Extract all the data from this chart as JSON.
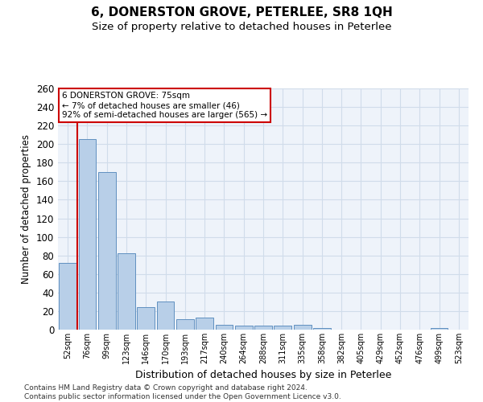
{
  "title": "6, DONERSTON GROVE, PETERLEE, SR8 1QH",
  "subtitle": "Size of property relative to detached houses in Peterlee",
  "xlabel": "Distribution of detached houses by size in Peterlee",
  "ylabel": "Number of detached properties",
  "categories": [
    "52sqm",
    "76sqm",
    "99sqm",
    "123sqm",
    "146sqm",
    "170sqm",
    "193sqm",
    "217sqm",
    "240sqm",
    "264sqm",
    "288sqm",
    "311sqm",
    "335sqm",
    "358sqm",
    "382sqm",
    "405sqm",
    "429sqm",
    "452sqm",
    "476sqm",
    "499sqm",
    "523sqm"
  ],
  "values": [
    72,
    205,
    170,
    82,
    24,
    30,
    11,
    13,
    5,
    4,
    4,
    4,
    5,
    2,
    0,
    0,
    0,
    0,
    0,
    2,
    0
  ],
  "bar_color": "#b8cfe8",
  "bar_edge_color": "#6090c0",
  "grid_color": "#d0dcea",
  "vline_x": 0.5,
  "vline_color": "#cc0000",
  "annotation_line1": "6 DONERSTON GROVE: 75sqm",
  "annotation_line2": "← 7% of detached houses are smaller (46)",
  "annotation_line3": "92% of semi-detached houses are larger (565) →",
  "annotation_box_color": "#ffffff",
  "annotation_box_edge": "#cc0000",
  "ylim": [
    0,
    260
  ],
  "yticks": [
    0,
    20,
    40,
    60,
    80,
    100,
    120,
    140,
    160,
    180,
    200,
    220,
    240,
    260
  ],
  "footnote": "Contains HM Land Registry data © Crown copyright and database right 2024.\nContains public sector information licensed under the Open Government Licence v3.0.",
  "bg_color": "#eef3fa",
  "title_fontsize": 11,
  "subtitle_fontsize": 9.5
}
